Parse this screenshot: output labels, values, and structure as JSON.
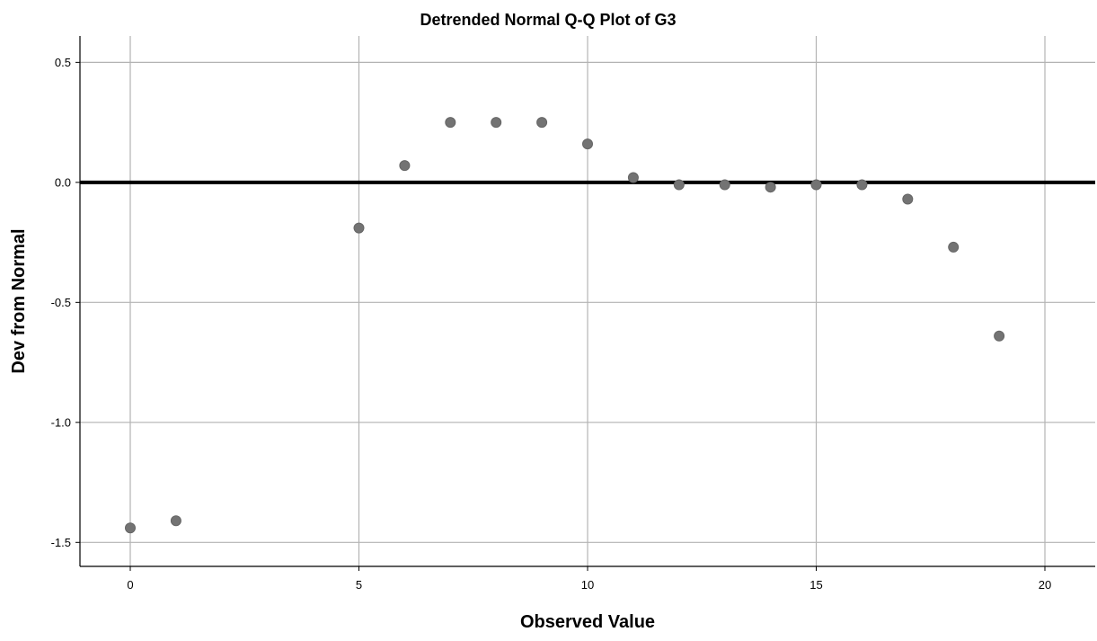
{
  "chart_data": {
    "type": "scatter",
    "title": "Detrended Normal Q-Q Plot of G3",
    "xlabel": "Observed Value",
    "ylabel": "Dev from Normal",
    "xlim": [
      -1.1,
      21.1
    ],
    "ylim": [
      -1.6,
      0.61
    ],
    "xticks": [
      0,
      5,
      10,
      15,
      20
    ],
    "xtick_labels": [
      "0",
      "5",
      "10",
      "15",
      "20"
    ],
    "yticks": [
      0.5,
      0.0,
      -0.5,
      -1.0,
      -1.5
    ],
    "ytick_labels": [
      "0.5",
      "0.0",
      "-0.5",
      "-1.0",
      "-1.5"
    ],
    "grid": true,
    "reference_line": 0.0,
    "colors": {
      "point": "#737373",
      "grid": "#b3b3b3",
      "reference_line": "#000000"
    },
    "points": [
      {
        "x": 0,
        "y": -1.44
      },
      {
        "x": 1,
        "y": -1.41
      },
      {
        "x": 5,
        "y": -0.19
      },
      {
        "x": 6,
        "y": 0.07
      },
      {
        "x": 7,
        "y": 0.25
      },
      {
        "x": 8,
        "y": 0.25
      },
      {
        "x": 9,
        "y": 0.25
      },
      {
        "x": 10,
        "y": 0.16
      },
      {
        "x": 11,
        "y": 0.02
      },
      {
        "x": 12,
        "y": -0.01
      },
      {
        "x": 13,
        "y": -0.01
      },
      {
        "x": 14,
        "y": -0.02
      },
      {
        "x": 15,
        "y": -0.01
      },
      {
        "x": 16,
        "y": -0.01
      },
      {
        "x": 17,
        "y": -0.07
      },
      {
        "x": 18,
        "y": -0.27
      },
      {
        "x": 19,
        "y": -0.64
      }
    ]
  }
}
